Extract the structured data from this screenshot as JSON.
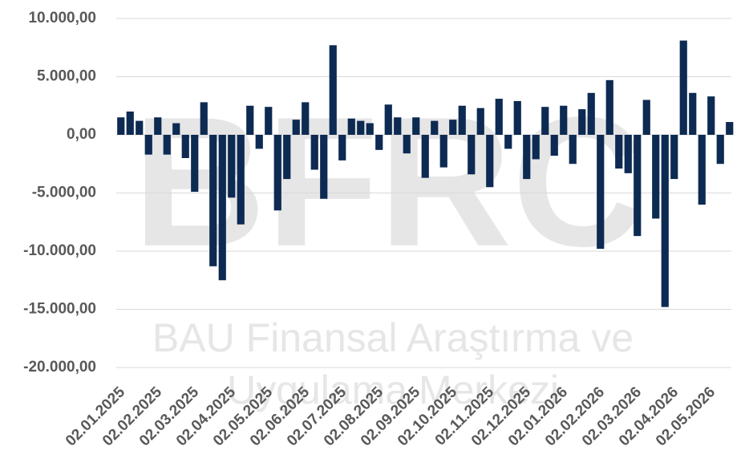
{
  "chart_data": {
    "type": "bar",
    "watermark": [
      "BFRC",
      "BAU Finansal Araştırma ve",
      "Uygulama Merkezi"
    ],
    "categories": [
      "02.01.2025",
      null,
      null,
      null,
      "02.02.2025",
      null,
      null,
      null,
      "02.03.2025",
      null,
      null,
      null,
      "02.04.2025",
      null,
      null,
      null,
      "02.05.2025",
      null,
      null,
      null,
      "02.06.2025",
      null,
      null,
      null,
      "02.07.2025",
      null,
      null,
      null,
      "02.08.2025",
      null,
      null,
      null,
      "02.09.2025",
      null,
      null,
      null,
      "02.10.2025",
      null,
      null,
      null,
      "02.11.2025",
      null,
      null,
      null,
      "02.12.2025",
      null,
      null,
      null,
      "02.01.2026",
      null,
      null,
      null,
      "02.02.2026",
      null,
      null,
      null,
      "02.03.2026",
      null,
      null,
      null,
      "02.04.2026",
      null,
      null,
      null,
      "02.05.2026",
      null,
      null
    ],
    "values": [
      1500,
      2000,
      1200,
      -1700,
      1500,
      -1700,
      1000,
      -2000,
      -4900,
      2800,
      -11300,
      -12500,
      -5400,
      -7700,
      2500,
      -1200,
      2400,
      -6500,
      -3800,
      1300,
      2800,
      -3000,
      -5500,
      7700,
      -2200,
      1400,
      1200,
      1000,
      -1300,
      2600,
      1500,
      -1600,
      1500,
      -3700,
      1200,
      -2800,
      1300,
      2500,
      -3400,
      2300,
      -4500,
      3100,
      -1200,
      2900,
      -3800,
      -2100,
      2400,
      -1800,
      2500,
      -2500,
      2200,
      3600,
      -9800,
      4700,
      -2900,
      -3300,
      -8700,
      3000,
      -7200,
      -14800,
      -3800,
      8100,
      3600,
      -6000,
      3300,
      -2500,
      1100
    ],
    "color": "#0d2a52",
    "ylim": [
      -20000,
      10000
    ],
    "yticks": [
      {
        "value": -20000,
        "label": "-20.000,00"
      },
      {
        "value": -15000,
        "label": "-15.000,00"
      },
      {
        "value": -10000,
        "label": "-10.000,00"
      },
      {
        "value": -5000,
        "label": "-5.000,00"
      },
      {
        "value": 0,
        "label": "0,00"
      },
      {
        "value": 5000,
        "label": "5.000,00"
      },
      {
        "value": 10000,
        "label": "10.000,00"
      }
    ],
    "grid": true
  }
}
